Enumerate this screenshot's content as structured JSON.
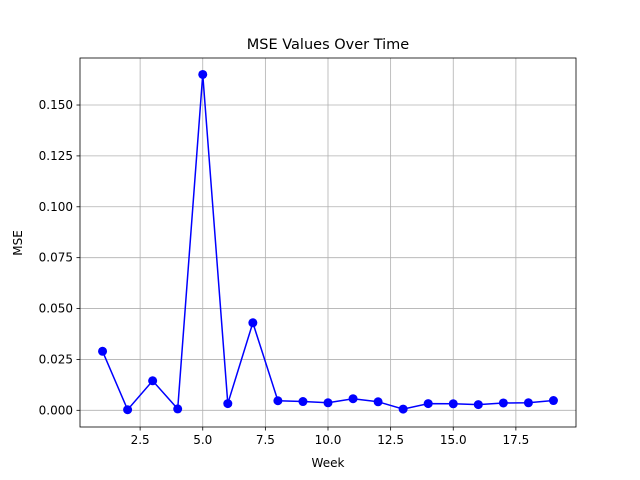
{
  "chart_data": {
    "type": "line",
    "title": "MSE Values Over Time",
    "xlabel": "Week",
    "ylabel": "MSE",
    "xlim": [
      0.1,
      19.9
    ],
    "ylim": [
      -0.0082,
      0.1731
    ],
    "xticks": [
      2.5,
      5.0,
      7.5,
      10.0,
      12.5,
      15.0,
      17.5
    ],
    "xtick_labels": [
      "2.5",
      "5.0",
      "7.5",
      "10.0",
      "12.5",
      "15.0",
      "17.5"
    ],
    "yticks": [
      0.0,
      0.025,
      0.05,
      0.075,
      0.1,
      0.125,
      0.15
    ],
    "ytick_labels": [
      "0.000",
      "0.025",
      "0.050",
      "0.075",
      "0.100",
      "0.125",
      "0.150"
    ],
    "grid": true,
    "color": "#0000ff",
    "marker": "circle",
    "x": [
      1,
      2,
      3,
      4,
      5,
      6,
      7,
      8,
      9,
      10,
      11,
      12,
      13,
      14,
      15,
      16,
      17,
      18,
      19
    ],
    "y": [
      0.029,
      0.0003,
      0.0145,
      0.0007,
      0.165,
      0.0033,
      0.043,
      0.0047,
      0.0043,
      0.0037,
      0.0057,
      0.0042,
      0.0006,
      0.0033,
      0.0032,
      0.0028,
      0.0036,
      0.0037,
      0.0048
    ]
  }
}
